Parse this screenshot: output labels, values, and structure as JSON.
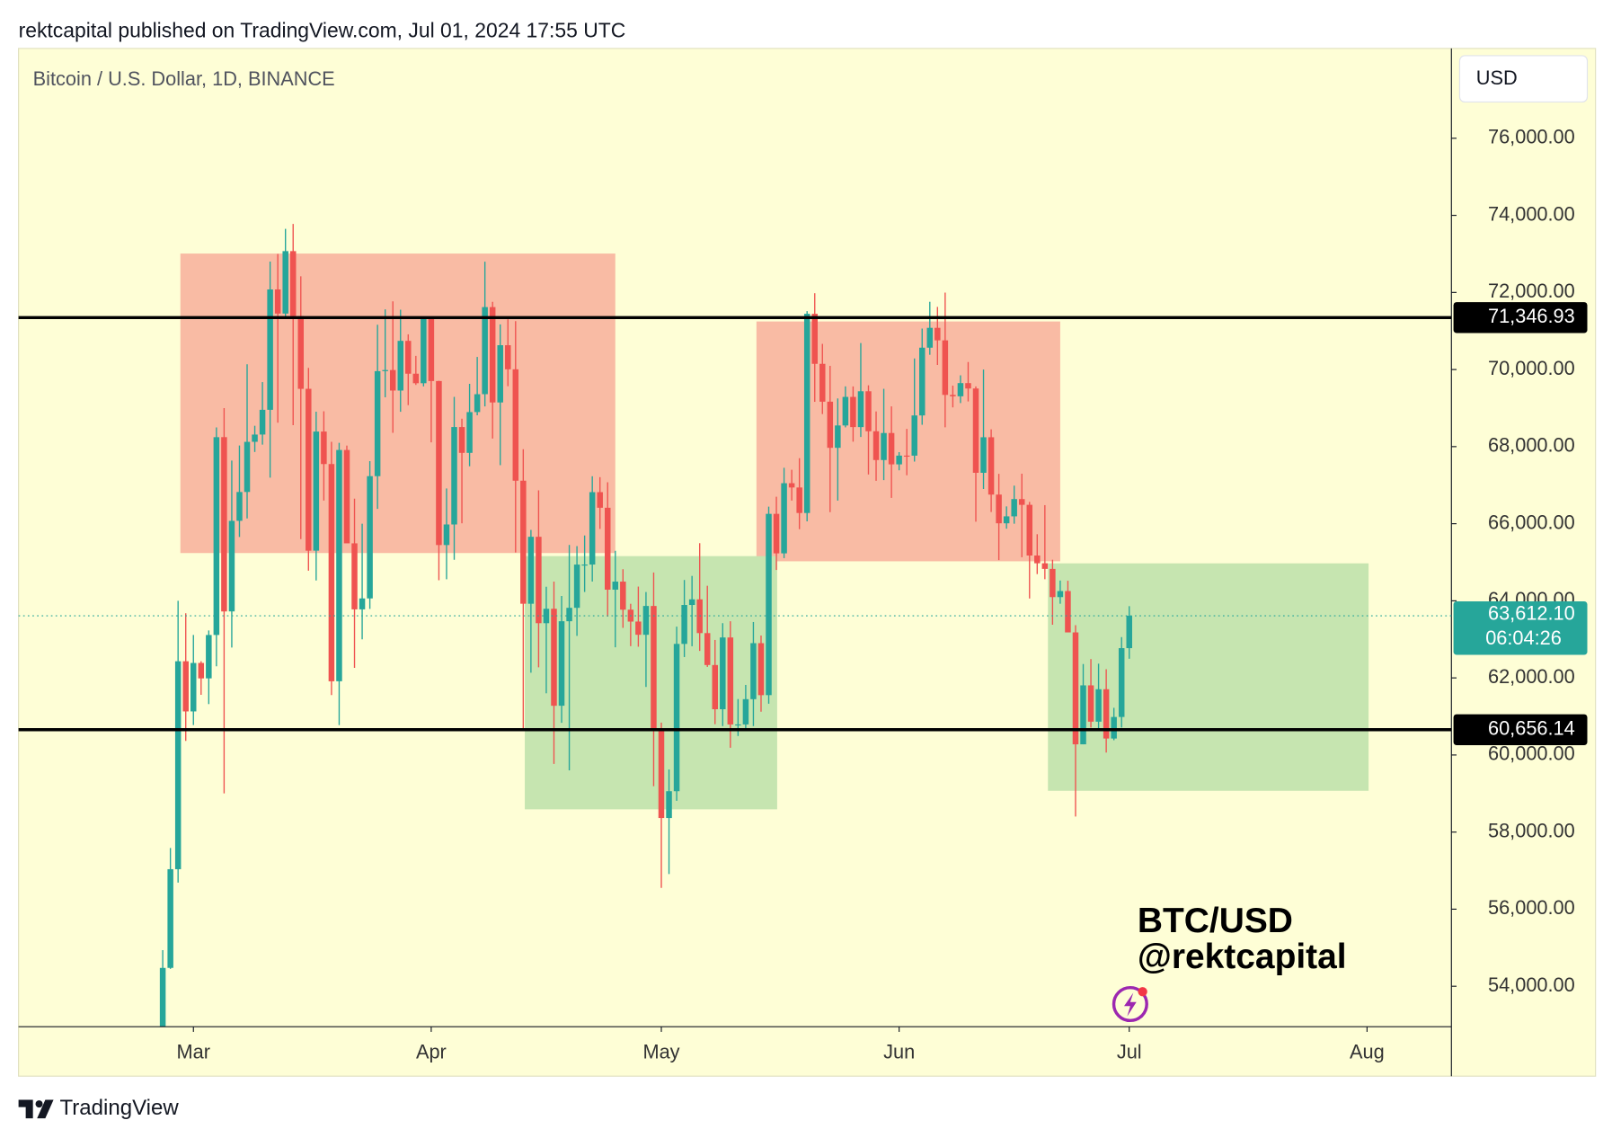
{
  "header": "rektcapital published on TradingView.com, Jul 01, 2024 17:55 UTC",
  "footer": "TradingView",
  "chart_data": {
    "type": "candlestick",
    "title": "Bitcoin / U.S. Dollar, 1D, BINANCE",
    "currency_button": "USD",
    "watermark": [
      "BTC/USD",
      "@rektcapital"
    ],
    "up_color": "#26a69a",
    "down_color": "#ef5350",
    "xlim": [
      -18.8,
      168
    ],
    "xticks": [
      {
        "value": 4,
        "label": "Mar"
      },
      {
        "value": 35,
        "label": "Apr"
      },
      {
        "value": 65,
        "label": "May"
      },
      {
        "value": 96,
        "label": "Jun"
      },
      {
        "value": 126,
        "label": "Jul"
      },
      {
        "value": 157,
        "label": "Aug"
      }
    ],
    "ylim": [
      52950,
      78330
    ],
    "yticks": [
      {
        "value": 54000,
        "label": "54,000.00"
      },
      {
        "value": 56000,
        "label": "56,000.00"
      },
      {
        "value": 58000,
        "label": "58,000.00"
      },
      {
        "value": 60000,
        "label": "60,000.00"
      },
      {
        "value": 62000,
        "label": "62,000.00"
      },
      {
        "value": 64000,
        "label": "64,000.00"
      },
      {
        "value": 66000,
        "label": "66,000.00"
      },
      {
        "value": 68000,
        "label": "68,000.00"
      },
      {
        "value": 70000,
        "label": "70,000.00"
      },
      {
        "value": 72000,
        "label": "72,000.00"
      },
      {
        "value": 74000,
        "label": "74,000.00"
      },
      {
        "value": 76000,
        "label": "76,000.00"
      }
    ],
    "levels": [
      {
        "value": 71346.93,
        "label": "71,346.93"
      },
      {
        "value": 60656.14,
        "label": "60,656.14"
      }
    ],
    "last_price": {
      "value": 63612.1,
      "label": "63,612.10",
      "countdown": "06:04:26"
    },
    "zones": [
      {
        "color": "#f9bba4",
        "x": [
          2.3,
          59
        ],
        "y": [
          65239,
          73009
        ]
      },
      {
        "color": "#f9bba4",
        "x": [
          77.4,
          117
        ],
        "y": [
          65025,
          71247
        ]
      },
      {
        "color": "#c6e5b0",
        "x": [
          47.2,
          80.1
        ],
        "y": [
          58590,
          65159
        ]
      },
      {
        "color": "#c6e5b0",
        "x": [
          115.4,
          157.2
        ],
        "y": [
          59071,
          64972
        ]
      }
    ],
    "candles": {
      "open": [
        51730,
        54477,
        57037,
        62432,
        61130,
        62388,
        61988,
        63114,
        68246,
        63725,
        66075,
        66824,
        68125,
        68314,
        68955,
        72078,
        71452,
        73072,
        71388,
        69500,
        65301,
        68391,
        67548,
        61913,
        67913,
        65491,
        63778,
        64062,
        67234,
        69958,
        69987,
        69455,
        70744,
        69892,
        69645,
        71333,
        69702,
        65447,
        65980,
        68508,
        67838,
        68897,
        69361,
        71620,
        69146,
        70631,
        70006,
        67116,
        63924,
        65661,
        63419,
        63793,
        61278,
        63470,
        63818,
        64941,
        64941,
        66819,
        66414,
        64290,
        64498,
        63770,
        63462,
        63119,
        63866,
        60672,
        58364,
        59060,
        62882,
        63892,
        64038,
        63162,
        62334,
        61187,
        63049,
        60793,
        60793,
        61448,
        62901,
        61553,
        66256,
        65231,
        67051,
        66940,
        66278,
        71446,
        70148,
        69166,
        67969,
        68549,
        69290,
        68507,
        69436,
        68399,
        67652,
        68353,
        67540,
        67767,
        67766,
        68809,
        70567,
        71082,
        70757,
        69342,
        69306,
        69648,
        69508,
        67321,
        68243,
        66756,
        66011,
        66191,
        66639,
        66490,
        65175,
        64974,
        64828,
        64096,
        64253,
        63180,
        60277,
        61806,
        60864,
        61706,
        60427,
        60986,
        62772
      ],
      "high": [
        54938,
        57588,
        64000,
        63676,
        63114,
        62433,
        63231,
        68499,
        69000,
        67637,
        68029,
        70136,
        68541,
        69674,
        72800,
        73000,
        73650,
        73777,
        72419,
        70043,
        68905,
        68917,
        68124,
        68100,
        68027,
        66650,
        65999,
        67624,
        71162,
        71561,
        71769,
        71552,
        70913,
        70355,
        71366,
        71342,
        69708,
        66914,
        69291,
        68725,
        69629,
        70327,
        72797,
        71758,
        71172,
        71305,
        71256,
        67932,
        65840,
        66867,
        64365,
        64499,
        64125,
        65450,
        65419,
        65695,
        67232,
        67208,
        67075,
        65297,
        64820,
        63923,
        64369,
        64228,
        64734,
        60841,
        59625,
        63330,
        64540,
        64646,
        65495,
        64390,
        62984,
        63420,
        63469,
        61451,
        61818,
        63450,
        63099,
        66444,
        66700,
        67451,
        67400,
        67700,
        71515,
        71980,
        70666,
        70096,
        69250,
        69563,
        69562,
        70687,
        69591,
        68913,
        69500,
        69044,
        67857,
        68460,
        70288,
        71063,
        71758,
        71625,
        71997,
        69582,
        69850,
        70195,
        69563,
        69999,
        68449,
        67294,
        66449,
        66988,
        67298,
        66566,
        65727,
        66482,
        65066,
        64526,
        64520,
        63369,
        62360,
        62488,
        62369,
        62225,
        61224,
        63058,
        63861
      ],
      "low": [
        50931,
        54450,
        56690,
        60364,
        60777,
        61561,
        61320,
        62300,
        59005,
        62787,
        65656,
        66136,
        67861,
        68052,
        67194,
        68620,
        71333,
        68555,
        65600,
        64780,
        64527,
        66601,
        61555,
        60775,
        65510,
        62260,
        63000,
        63790,
        66385,
        69280,
        68359,
        68904,
        69076,
        69601,
        69562,
        68110,
        64533,
        64559,
        65064,
        66011,
        67491,
        68813,
        69043,
        68210,
        67518,
        69567,
        65254,
        60660,
        62134,
        62274,
        61600,
        59768,
        60833,
        59600,
        63090,
        64229,
        64500,
        65865,
        63589,
        62794,
        63298,
        62824,
        62809,
        61765,
        59191,
        56552,
        56911,
        58811,
        62541,
        62822,
        62700,
        62285,
        60800,
        60750,
        60187,
        60492,
        60632,
        60750,
        61123,
        61330,
        64800,
        65107,
        66600,
        65858,
        66060,
        69162,
        68845,
        66300,
        66600,
        68500,
        68128,
        68250,
        67277,
        67113,
        67131,
        66670,
        67386,
        67257,
        67612,
        68567,
        70383,
        70119,
        68500,
        69018,
        69130,
        69172,
        66051,
        66902,
        66304,
        65056,
        65871,
        66000,
        65130,
        64060,
        64693,
        64560,
        63379,
        63924,
        63209,
        58402,
        60277,
        60712,
        60631,
        60063,
        60383,
        60712,
        62497
      ],
      "close": [
        54476,
        57037,
        62432,
        61130,
        62387,
        61987,
        63113,
        68245,
        63724,
        66074,
        66823,
        68124,
        68313,
        68955,
        72078,
        71452,
        73072,
        71388,
        69499,
        65300,
        68391,
        67548,
        61912,
        67913,
        65491,
        63778,
        64062,
        67234,
        69958,
        69987,
        69455,
        70744,
        69892,
        69645,
        71333,
        69702,
        65447,
        65980,
        68508,
        67838,
        68896,
        69360,
        71620,
        69146,
        70631,
        70006,
        67116,
        63924,
        65661,
        63419,
        63793,
        61277,
        63470,
        63818,
        64940,
        64941,
        66819,
        66414,
        64289,
        64498,
        63770,
        63461,
        63119,
        63866,
        60672,
        58364,
        59060,
        62882,
        63892,
        64038,
        63162,
        62334,
        61187,
        63049,
        60792,
        60793,
        61448,
        62901,
        61552,
        66256,
        65231,
        67051,
        66940,
        66278,
        71446,
        70148,
        69166,
        67969,
        68549,
        69290,
        68507,
        69436,
        68399,
        67652,
        68353,
        67540,
        67767,
        67766,
        68809,
        70567,
        71082,
        70757,
        69342,
        69306,
        69648,
        69508,
        67321,
        68243,
        66756,
        66011,
        66191,
        66639,
        66490,
        65175,
        64974,
        64828,
        64096,
        64253,
        63180,
        60277,
        61806,
        60864,
        61706,
        60427,
        60986,
        62772,
        63612.1
      ]
    }
  }
}
